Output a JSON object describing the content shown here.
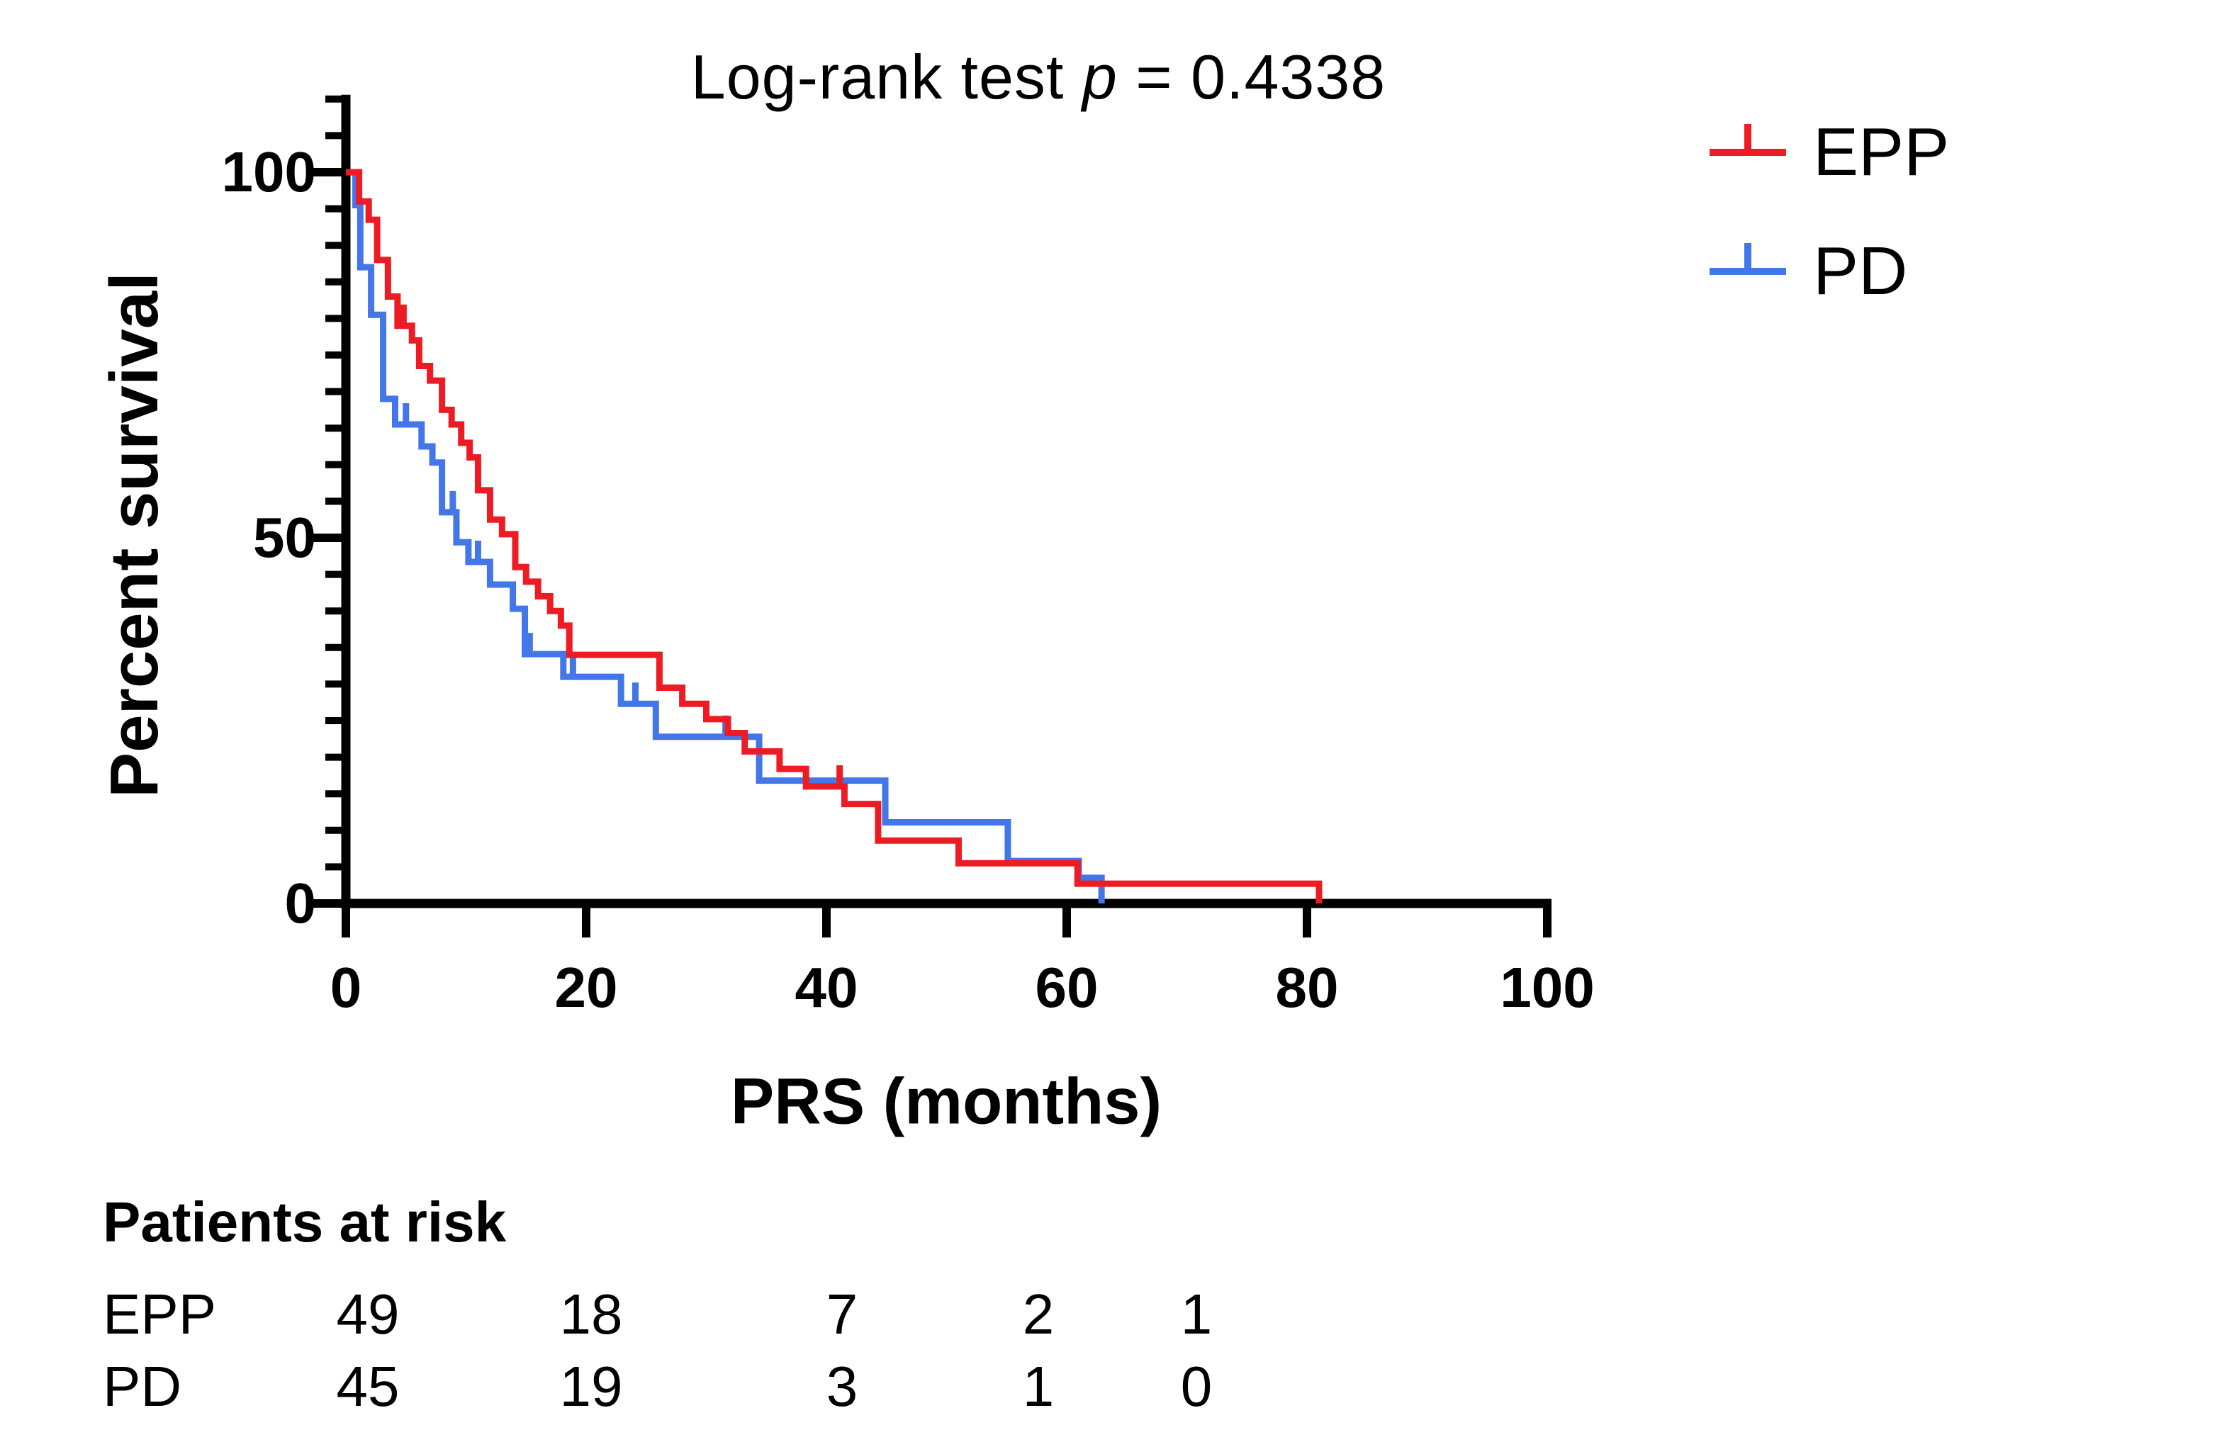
{
  "title": {
    "full": "Log-rank test p = 0.4338",
    "prefix": "Log-rank test ",
    "pvar": "p",
    "suffix": " = 0.4338"
  },
  "axes": {
    "y_label": "Percent survival",
    "x_label": "PRS (months)",
    "y_tick_labels": [
      "0",
      "50",
      "100"
    ],
    "x_tick_labels": [
      "0",
      "20",
      "40",
      "60",
      "80",
      "100"
    ]
  },
  "legend": {
    "items": [
      {
        "label": "EPP",
        "color": "#ED1C24"
      },
      {
        "label": "PD",
        "color": "#4376E8"
      }
    ]
  },
  "risk_table": {
    "header": "Patients at risk",
    "rows": [
      {
        "label": "EPP",
        "counts": [
          "49",
          "18",
          "7",
          "2",
          "1"
        ]
      },
      {
        "label": "PD",
        "counts": [
          "45",
          "19",
          "3",
          "1",
          "0"
        ]
      }
    ]
  },
  "chart_data": {
    "type": "line",
    "subtype": "kaplan-meier-step",
    "title": "Log-rank test p = 0.4338",
    "xlabel": "PRS (months)",
    "ylabel": "Percent survival",
    "xlim": [
      0,
      100
    ],
    "ylim": [
      0,
      110
    ],
    "x_major_ticks": [
      0,
      20,
      40,
      60,
      80,
      100
    ],
    "y_major_ticks": [
      0,
      50,
      100
    ],
    "y_minor_tick_step": 5,
    "grid": false,
    "legend_position": "top-right",
    "series": [
      {
        "name": "EPP",
        "color": "#ED1C24",
        "steps": [
          [
            0,
            100
          ],
          [
            1.1,
            96
          ],
          [
            1.9,
            93.5
          ],
          [
            2.6,
            88
          ],
          [
            3.5,
            83
          ],
          [
            4.3,
            79
          ],
          [
            5.5,
            77
          ],
          [
            6.1,
            73.5
          ],
          [
            7,
            71.5
          ],
          [
            8,
            67.5
          ],
          [
            8.8,
            65.5
          ],
          [
            9.6,
            63
          ],
          [
            10.3,
            61
          ],
          [
            11,
            56.5
          ],
          [
            12,
            52.5
          ],
          [
            13,
            50.5
          ],
          [
            14.1,
            46
          ],
          [
            15,
            44
          ],
          [
            16,
            42
          ],
          [
            17,
            40
          ],
          [
            17.9,
            38
          ],
          [
            18.6,
            34
          ],
          [
            26.1,
            29.5
          ],
          [
            28,
            27.3
          ],
          [
            30,
            25.2
          ],
          [
            31.8,
            23.3
          ],
          [
            33.2,
            20.8
          ],
          [
            36.1,
            18.4
          ],
          [
            38.3,
            16
          ],
          [
            41.5,
            13.6
          ],
          [
            44.3,
            8.6
          ],
          [
            51,
            5.5
          ],
          [
            60.9,
            2.7
          ],
          [
            81,
            0
          ]
        ],
        "censor_marks": [
          [
            4.8,
            79
          ],
          [
            41.1,
            16
          ]
        ]
      },
      {
        "name": "PD",
        "color": "#4376E8",
        "steps": [
          [
            0,
            100
          ],
          [
            0.8,
            95.5
          ],
          [
            1.2,
            87
          ],
          [
            2.1,
            80.5
          ],
          [
            3.1,
            69
          ],
          [
            4.1,
            65.5
          ],
          [
            6.3,
            62.5
          ],
          [
            7.2,
            60.3
          ],
          [
            8,
            53.5
          ],
          [
            9.2,
            49.4
          ],
          [
            10.2,
            46.7
          ],
          [
            12,
            43.6
          ],
          [
            13.9,
            40.3
          ],
          [
            14.9,
            34.1
          ],
          [
            18.1,
            31
          ],
          [
            22.9,
            27.3
          ],
          [
            25.8,
            22.8
          ],
          [
            34.4,
            16.8
          ],
          [
            44.9,
            11.1
          ],
          [
            55.1,
            5.8
          ],
          [
            61,
            3.5
          ],
          [
            62.9,
            0
          ]
        ],
        "censor_marks": [
          [
            5,
            65.5
          ],
          [
            8.9,
            53.5
          ],
          [
            11,
            46.7
          ],
          [
            15.3,
            34.1
          ],
          [
            18.9,
            31
          ],
          [
            24.1,
            27.3
          ],
          [
            31.6,
            22.8
          ]
        ]
      }
    ],
    "patients_at_risk": {
      "times": [
        0,
        20,
        40,
        60,
        80
      ],
      "EPP": [
        49,
        18,
        7,
        2,
        1
      ],
      "PD": [
        45,
        19,
        3,
        1,
        0
      ]
    }
  }
}
